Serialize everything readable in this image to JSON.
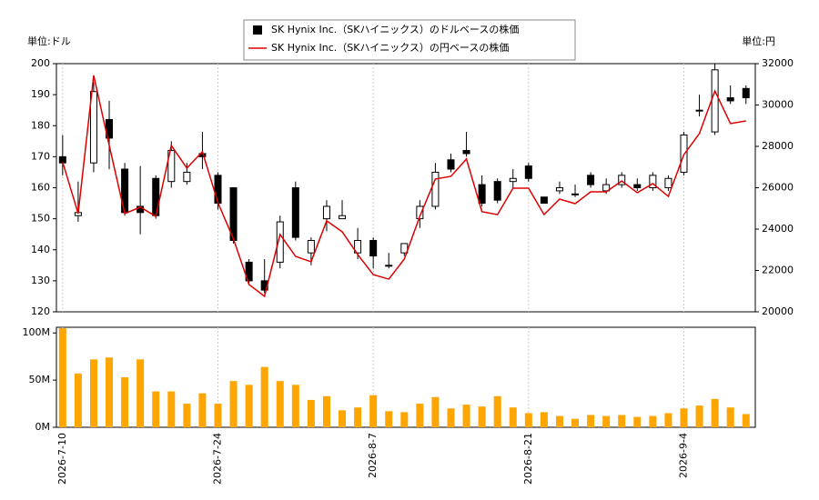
{
  "chart_data": [
    {
      "type": "candlestick",
      "ylabel": "単位:ドル",
      "y2label": "単位:円",
      "ylim": [
        120,
        200
      ],
      "yticks": [
        120,
        130,
        140,
        150,
        160,
        170,
        180,
        190,
        200
      ],
      "y2lim": [
        20000,
        32000
      ],
      "y2ticks": [
        20000,
        22000,
        24000,
        26000,
        28000,
        30000,
        32000
      ],
      "series": [
        {
          "name": "SK Hynix Inc.（SKハイニックス）のドルベースの株価",
          "color": "#000000",
          "up_color": "#ffffff",
          "open": [
            170,
            151,
            168,
            182,
            166,
            154,
            163,
            162,
            162,
            171,
            164,
            160,
            136,
            130,
            136,
            160,
            139,
            150,
            150,
            139,
            143,
            135,
            139,
            150,
            154,
            169,
            172,
            161,
            162,
            162,
            167,
            157,
            159,
            158,
            164,
            159,
            161,
            161,
            160,
            160,
            165,
            185,
            178,
            189,
            192
          ],
          "high": [
            177,
            162,
            194,
            188,
            168,
            167,
            164,
            175,
            168,
            178,
            165,
            160,
            137,
            137,
            151,
            162,
            144,
            156,
            156,
            147,
            144,
            139,
            142,
            156,
            168,
            171,
            178,
            164,
            163,
            166,
            168,
            157,
            162,
            161,
            165,
            163,
            165,
            163,
            165,
            164,
            178,
            190,
            200,
            193,
            193
          ],
          "low": [
            164,
            149,
            165,
            166,
            151,
            145,
            150,
            160,
            161,
            166,
            153,
            142,
            129,
            126,
            134,
            143,
            135,
            146,
            150,
            137,
            134,
            134,
            138,
            147,
            153,
            165,
            170,
            154,
            155,
            160,
            162,
            155,
            158,
            157,
            160,
            158,
            160,
            159,
            159,
            159,
            164,
            183,
            177,
            187,
            187
          ],
          "close": [
            168,
            152,
            191,
            176,
            152,
            152,
            151,
            172,
            165,
            170,
            155,
            143,
            130,
            127,
            149,
            144,
            143,
            154,
            151,
            143,
            138,
            135,
            142,
            154,
            165,
            166,
            171,
            155,
            156,
            163,
            163,
            155,
            160,
            158,
            161,
            161,
            164,
            160,
            164,
            163,
            177,
            185,
            198,
            188,
            189
          ]
        },
        {
          "name": "SK Hynix Inc.（SKハイニックス）の円ベースの株価",
          "color": "#dd0000",
          "axis": "y2",
          "values": [
            27250,
            24750,
            31430,
            28040,
            24750,
            25060,
            24620,
            28040,
            26950,
            27740,
            25280,
            23520,
            21320,
            20750,
            23740,
            22680,
            22420,
            24400,
            23870,
            22770,
            21800,
            21580,
            22550,
            24620,
            26420,
            26550,
            27390,
            24840,
            24700,
            25980,
            25980,
            24700,
            25450,
            25230,
            25800,
            25800,
            26330,
            25760,
            26200,
            25580,
            27600,
            28620,
            30680,
            29100,
            29230
          ]
        }
      ]
    },
    {
      "type": "bar",
      "color": "#ffa500",
      "categories": [
        "2026-7-10",
        null,
        null,
        null,
        null,
        null,
        null,
        null,
        null,
        null,
        "2026-7-24",
        null,
        null,
        null,
        null,
        null,
        null,
        null,
        null,
        null,
        "2026-8-7",
        null,
        null,
        null,
        null,
        null,
        null,
        null,
        null,
        null,
        "2026-8-21",
        null,
        null,
        null,
        null,
        null,
        null,
        null,
        null,
        null,
        "2026-9-4",
        null,
        null,
        null,
        null
      ],
      "values": [
        105000000,
        57000000,
        72000000,
        74000000,
        53000000,
        72000000,
        38000000,
        38000000,
        25000000,
        36000000,
        25000000,
        49000000,
        45000000,
        64000000,
        49000000,
        45000000,
        29000000,
        33000000,
        18000000,
        21000000,
        34000000,
        17000000,
        16000000,
        25000000,
        32000000,
        20000000,
        24000000,
        22000000,
        33000000,
        21000000,
        15000000,
        16000000,
        12000000,
        9000000,
        13000000,
        12000000,
        13000000,
        11000000,
        12000000,
        15000000,
        20000000,
        23000000,
        30000000,
        21000000,
        14000000
      ],
      "ylim": [
        0,
        106000000
      ],
      "yticks": [
        {
          "value": 0,
          "label": "0M"
        },
        {
          "value": 50000000,
          "label": "50M"
        },
        {
          "value": 100000000,
          "label": "100M"
        }
      ],
      "grid": true
    }
  ]
}
